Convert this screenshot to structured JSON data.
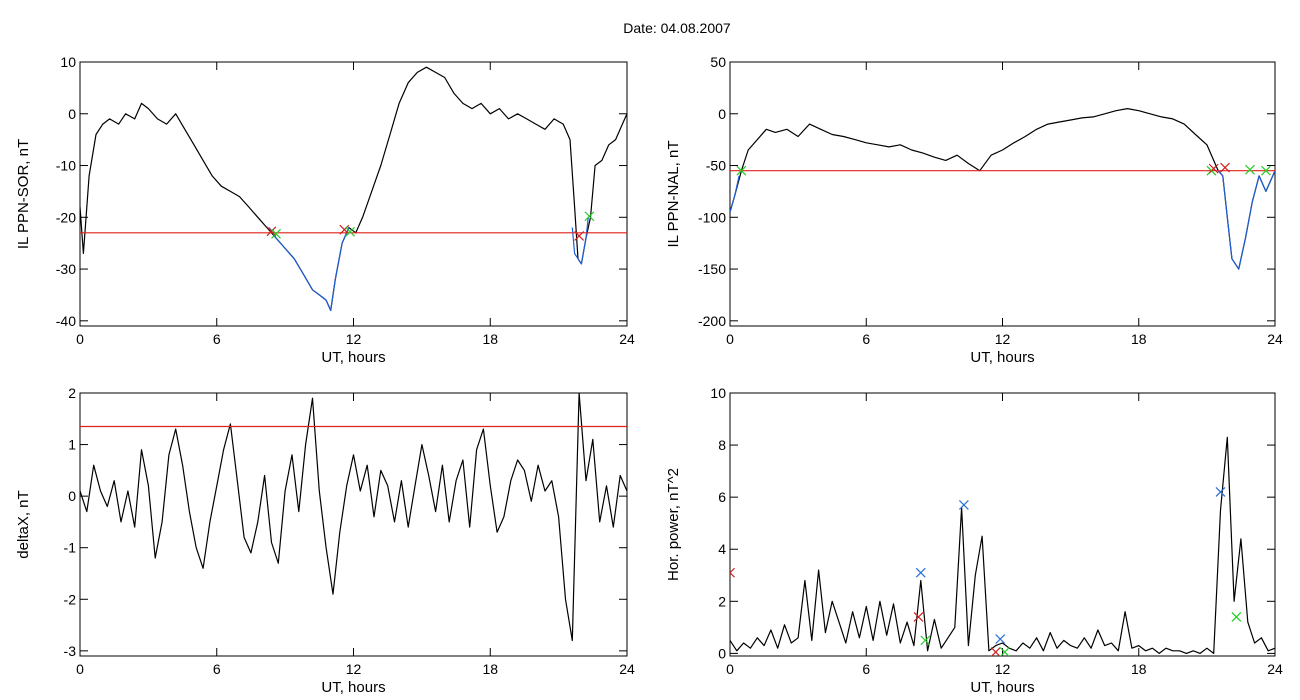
{
  "title": "Date:  04.08.2007",
  "colors": {
    "trace": "#000000",
    "highlight": "#1f5fd6",
    "threshold": "#e0201a",
    "start_marker": "#22cc22",
    "end_marker": "#d02020",
    "peak_marker": "#2a6fd6"
  },
  "chart_data": [
    {
      "type": "line",
      "ylabel": "IL PPN-SOR, nT",
      "xlabel": "UT, hours",
      "xlim": [
        0,
        24
      ],
      "ylim": [
        -41,
        10
      ],
      "xticks": [
        0,
        6,
        12,
        18,
        24
      ],
      "yticks": [
        10,
        0,
        -10,
        -20,
        -30,
        -40
      ],
      "grid": false,
      "threshold": -23,
      "series": [
        {
          "role": "trace",
          "x": [
            0,
            0.15,
            0.4,
            0.7,
            1.0,
            1.3,
            1.7,
            2.0,
            2.4,
            2.7,
            3.0,
            3.4,
            3.8,
            4.2,
            4.6,
            5.0,
            5.4,
            5.8,
            6.2,
            6.6,
            7.0,
            7.4,
            7.8,
            8.2,
            8.6,
            9.0,
            9.4,
            9.8,
            10.2,
            10.5,
            10.8,
            11.0,
            11.2,
            11.5,
            11.8,
            12.1,
            12.4,
            12.8,
            13.2,
            13.6,
            14.0,
            14.4,
            14.8,
            15.2,
            15.6,
            16.0,
            16.4,
            16.8,
            17.2,
            17.6,
            18.0,
            18.4,
            18.8,
            19.2,
            19.6,
            20.0,
            20.4,
            20.8,
            21.2,
            21.5,
            21.7,
            21.85,
            22.0,
            22.2,
            22.4,
            22.6,
            22.9,
            23.2,
            23.5,
            23.8,
            24.0
          ],
          "y": [
            -18,
            -27,
            -12,
            -4,
            -2,
            -1,
            -2,
            0,
            -1,
            2,
            1,
            -1,
            -2,
            0,
            -3,
            -6,
            -9,
            -12,
            -14,
            -15,
            -16,
            -18,
            -20,
            -22,
            -24,
            -26,
            -28,
            -31,
            -34,
            -35,
            -36,
            -38,
            -32,
            -25,
            -22,
            -23,
            -20,
            -15,
            -10,
            -4,
            2,
            6,
            8,
            9,
            8,
            7,
            4,
            2,
            1,
            2,
            0,
            1,
            -1,
            0,
            -1,
            -2,
            -3,
            -1,
            -2,
            -5,
            -18,
            -28,
            -29,
            -24,
            -20,
            -10,
            -9,
            -6,
            -5,
            -2,
            0
          ]
        },
        {
          "role": "highlight",
          "x": [
            8.3,
            8.6,
            9.0,
            9.4,
            9.8,
            10.2,
            10.5,
            10.8,
            11.0,
            11.2,
            11.5,
            11.8
          ],
          "y": [
            -22,
            -24,
            -26,
            -28,
            -31,
            -34,
            -35,
            -36,
            -38,
            -32,
            -25,
            -22
          ]
        },
        {
          "role": "highlight",
          "x": [
            21.6,
            21.7,
            21.85,
            22.0,
            22.2,
            22.3
          ],
          "y": [
            -22,
            -27,
            -28,
            -29,
            -24,
            -20
          ]
        }
      ],
      "markers": [
        {
          "x": 8.4,
          "y": -22.7,
          "kind": "cross",
          "color": "red"
        },
        {
          "x": 8.6,
          "y": -23.2,
          "kind": "cross",
          "color": "green"
        },
        {
          "x": 11.6,
          "y": -22.4,
          "kind": "cross",
          "color": "red"
        },
        {
          "x": 11.85,
          "y": -22.8,
          "kind": "cross",
          "color": "green"
        },
        {
          "x": 21.9,
          "y": -23.6,
          "kind": "cross",
          "color": "red"
        },
        {
          "x": 22.35,
          "y": -19.8,
          "kind": "cross",
          "color": "green"
        }
      ]
    },
    {
      "type": "line",
      "ylabel": "IL PPN-NAL, nT",
      "xlabel": "UT, hours",
      "xlim": [
        0,
        24
      ],
      "ylim": [
        -205,
        50
      ],
      "xticks": [
        0,
        6,
        12,
        18,
        24
      ],
      "yticks": [
        50,
        0,
        -50,
        -100,
        -150,
        -200
      ],
      "grid": false,
      "threshold": -55,
      "series": [
        {
          "role": "trace",
          "x": [
            0,
            0.2,
            0.5,
            0.8,
            1.2,
            1.6,
            2.0,
            2.5,
            3.0,
            3.5,
            4.0,
            4.5,
            5.0,
            5.5,
            6.0,
            6.5,
            7.0,
            7.5,
            8.0,
            8.5,
            9.0,
            9.5,
            10.0,
            10.5,
            11.0,
            11.5,
            12.0,
            12.5,
            13.0,
            13.5,
            14.0,
            14.5,
            15.0,
            15.5,
            16.0,
            16.5,
            17.0,
            17.5,
            18.0,
            18.5,
            19.0,
            19.5,
            20.0,
            20.5,
            21.0,
            21.3,
            21.5,
            21.7,
            21.9,
            22.1,
            22.4,
            22.7,
            23.0,
            23.3,
            23.6,
            24.0
          ],
          "y": [
            -95,
            -80,
            -55,
            -35,
            -25,
            -15,
            -18,
            -15,
            -22,
            -10,
            -15,
            -20,
            -22,
            -25,
            -28,
            -30,
            -32,
            -30,
            -35,
            -38,
            -42,
            -45,
            -40,
            -48,
            -55,
            -40,
            -35,
            -28,
            -22,
            -15,
            -10,
            -8,
            -6,
            -4,
            -3,
            0,
            3,
            5,
            3,
            0,
            -3,
            -5,
            -10,
            -20,
            -30,
            -45,
            -55,
            -60,
            -100,
            -140,
            -150,
            -120,
            -85,
            -60,
            -75,
            -55
          ]
        },
        {
          "role": "highlight",
          "x": [
            0,
            0.2,
            0.4
          ],
          "y": [
            -95,
            -80,
            -60
          ]
        },
        {
          "role": "highlight",
          "x": [
            21.5,
            21.7,
            21.9,
            22.1,
            22.4,
            22.7,
            23.0,
            23.3,
            23.6,
            24.0
          ],
          "y": [
            -55,
            -60,
            -100,
            -140,
            -150,
            -120,
            -85,
            -60,
            -75,
            -55
          ]
        }
      ],
      "markers": [
        {
          "x": 0.5,
          "y": -55,
          "kind": "cross",
          "color": "green"
        },
        {
          "x": 21.2,
          "y": -55,
          "kind": "cross",
          "color": "green"
        },
        {
          "x": 21.3,
          "y": -53,
          "kind": "cross",
          "color": "red"
        },
        {
          "x": 21.8,
          "y": -52,
          "kind": "cross",
          "color": "red"
        },
        {
          "x": 22.9,
          "y": -54,
          "kind": "cross",
          "color": "green"
        },
        {
          "x": 23.6,
          "y": -55,
          "kind": "cross",
          "color": "green"
        }
      ]
    },
    {
      "type": "line",
      "ylabel": "deltaX, nT",
      "xlabel": "UT, hours",
      "xlim": [
        0,
        24
      ],
      "ylim": [
        -3.1,
        2
      ],
      "xticks": [
        0,
        6,
        12,
        18,
        24
      ],
      "yticks": [
        2,
        1,
        0,
        -1,
        -2,
        -3
      ],
      "grid": false,
      "threshold": 1.35,
      "series": [
        {
          "role": "trace",
          "x": [
            0,
            0.3,
            0.6,
            0.9,
            1.2,
            1.5,
            1.8,
            2.1,
            2.4,
            2.7,
            3.0,
            3.3,
            3.6,
            3.9,
            4.2,
            4.5,
            4.8,
            5.1,
            5.4,
            5.7,
            6.0,
            6.3,
            6.6,
            6.9,
            7.2,
            7.5,
            7.8,
            8.1,
            8.4,
            8.7,
            9.0,
            9.3,
            9.6,
            9.9,
            10.2,
            10.5,
            10.8,
            11.1,
            11.4,
            11.7,
            12.0,
            12.3,
            12.6,
            12.9,
            13.2,
            13.5,
            13.8,
            14.1,
            14.4,
            14.7,
            15.0,
            15.3,
            15.6,
            15.9,
            16.2,
            16.5,
            16.8,
            17.1,
            17.4,
            17.7,
            18.0,
            18.3,
            18.6,
            18.9,
            19.2,
            19.5,
            19.8,
            20.1,
            20.4,
            20.7,
            21.0,
            21.3,
            21.6,
            21.9,
            22.2,
            22.5,
            22.8,
            23.1,
            23.4,
            23.7,
            24.0
          ],
          "y": [
            0.1,
            -0.3,
            0.6,
            0.1,
            -0.2,
            0.3,
            -0.5,
            0.1,
            -0.6,
            0.9,
            0.2,
            -1.2,
            -0.5,
            0.8,
            1.3,
            0.6,
            -0.3,
            -1.0,
            -1.4,
            -0.5,
            0.2,
            0.9,
            1.4,
            0.3,
            -0.8,
            -1.1,
            -0.5,
            0.4,
            -0.9,
            -1.3,
            0.1,
            0.8,
            -0.3,
            1.0,
            1.9,
            0.1,
            -1.0,
            -1.9,
            -0.7,
            0.2,
            0.8,
            0.1,
            0.6,
            -0.4,
            0.5,
            0.2,
            -0.5,
            0.3,
            -0.6,
            0.2,
            1.0,
            0.4,
            -0.3,
            0.6,
            -0.5,
            0.3,
            0.7,
            -0.6,
            0.9,
            1.3,
            0.2,
            -0.7,
            -0.4,
            0.3,
            0.7,
            0.5,
            -0.1,
            0.6,
            0.1,
            0.3,
            -0.4,
            -2.0,
            -2.8,
            2.0,
            0.3,
            1.1,
            -0.5,
            0.2,
            -0.6,
            0.4,
            0.1
          ]
        }
      ],
      "markers": []
    },
    {
      "type": "line",
      "ylabel": "Hor. power, nT^2",
      "xlabel": "UT, hours",
      "xlim": [
        0,
        24
      ],
      "ylim": [
        -0.1,
        10
      ],
      "xticks": [
        0,
        6,
        12,
        18,
        24
      ],
      "yticks": [
        10,
        8,
        6,
        4,
        2,
        0
      ],
      "grid": false,
      "series": [
        {
          "role": "trace",
          "x": [
            0,
            0.3,
            0.6,
            0.9,
            1.2,
            1.5,
            1.8,
            2.1,
            2.4,
            2.7,
            3.0,
            3.3,
            3.6,
            3.9,
            4.2,
            4.5,
            4.8,
            5.1,
            5.4,
            5.7,
            6.0,
            6.3,
            6.6,
            6.9,
            7.2,
            7.5,
            7.8,
            8.1,
            8.4,
            8.7,
            9.0,
            9.3,
            9.6,
            9.9,
            10.2,
            10.5,
            10.8,
            11.1,
            11.4,
            11.7,
            12.0,
            12.3,
            12.6,
            12.9,
            13.2,
            13.5,
            13.8,
            14.1,
            14.4,
            14.7,
            15.0,
            15.3,
            15.6,
            15.9,
            16.2,
            16.5,
            16.8,
            17.1,
            17.4,
            17.7,
            18.0,
            18.3,
            18.6,
            18.9,
            19.2,
            19.5,
            19.8,
            20.1,
            20.4,
            20.7,
            21.0,
            21.3,
            21.6,
            21.9,
            22.2,
            22.5,
            22.8,
            23.1,
            23.4,
            23.7,
            24.0
          ],
          "y": [
            0.5,
            0.1,
            0.4,
            0.2,
            0.6,
            0.3,
            0.9,
            0.2,
            1.1,
            0.4,
            0.6,
            2.8,
            0.5,
            3.2,
            0.8,
            2.0,
            1.2,
            0.4,
            1.6,
            0.6,
            1.8,
            0.5,
            2.0,
            0.7,
            1.9,
            0.4,
            1.2,
            0.3,
            2.8,
            0.1,
            1.3,
            0.2,
            0.6,
            1.0,
            5.6,
            0.3,
            3.0,
            4.5,
            0.1,
            0.3,
            0.4,
            0.2,
            0.1,
            0.4,
            0.2,
            0.6,
            0.1,
            0.8,
            0.2,
            0.5,
            0.3,
            0.2,
            0.6,
            0.2,
            0.9,
            0.3,
            0.4,
            0.1,
            1.6,
            0.2,
            0.3,
            0.1,
            0.2,
            0.0,
            0.2,
            0.1,
            0.1,
            0.0,
            0.1,
            0.0,
            0.2,
            0.0,
            5.5,
            8.3,
            2.0,
            4.4,
            1.2,
            0.4,
            0.6,
            0.1,
            0.2
          ]
        }
      ],
      "markers": [
        {
          "x": 0.0,
          "y": 3.1,
          "kind": "cross",
          "color": "red"
        },
        {
          "x": 8.3,
          "y": 1.4,
          "kind": "cross",
          "color": "red"
        },
        {
          "x": 8.6,
          "y": 0.5,
          "kind": "cross",
          "color": "green"
        },
        {
          "x": 8.4,
          "y": 3.1,
          "kind": "cross",
          "color": "blue"
        },
        {
          "x": 10.3,
          "y": 5.7,
          "kind": "cross",
          "color": "blue"
        },
        {
          "x": 11.9,
          "y": 0.55,
          "kind": "cross",
          "color": "blue"
        },
        {
          "x": 11.7,
          "y": 0.05,
          "kind": "cross",
          "color": "red"
        },
        {
          "x": 12.1,
          "y": 0.05,
          "kind": "cross",
          "color": "green"
        },
        {
          "x": 21.6,
          "y": 6.2,
          "kind": "cross",
          "color": "blue"
        },
        {
          "x": 22.3,
          "y": 1.4,
          "kind": "cross",
          "color": "green"
        }
      ]
    }
  ]
}
